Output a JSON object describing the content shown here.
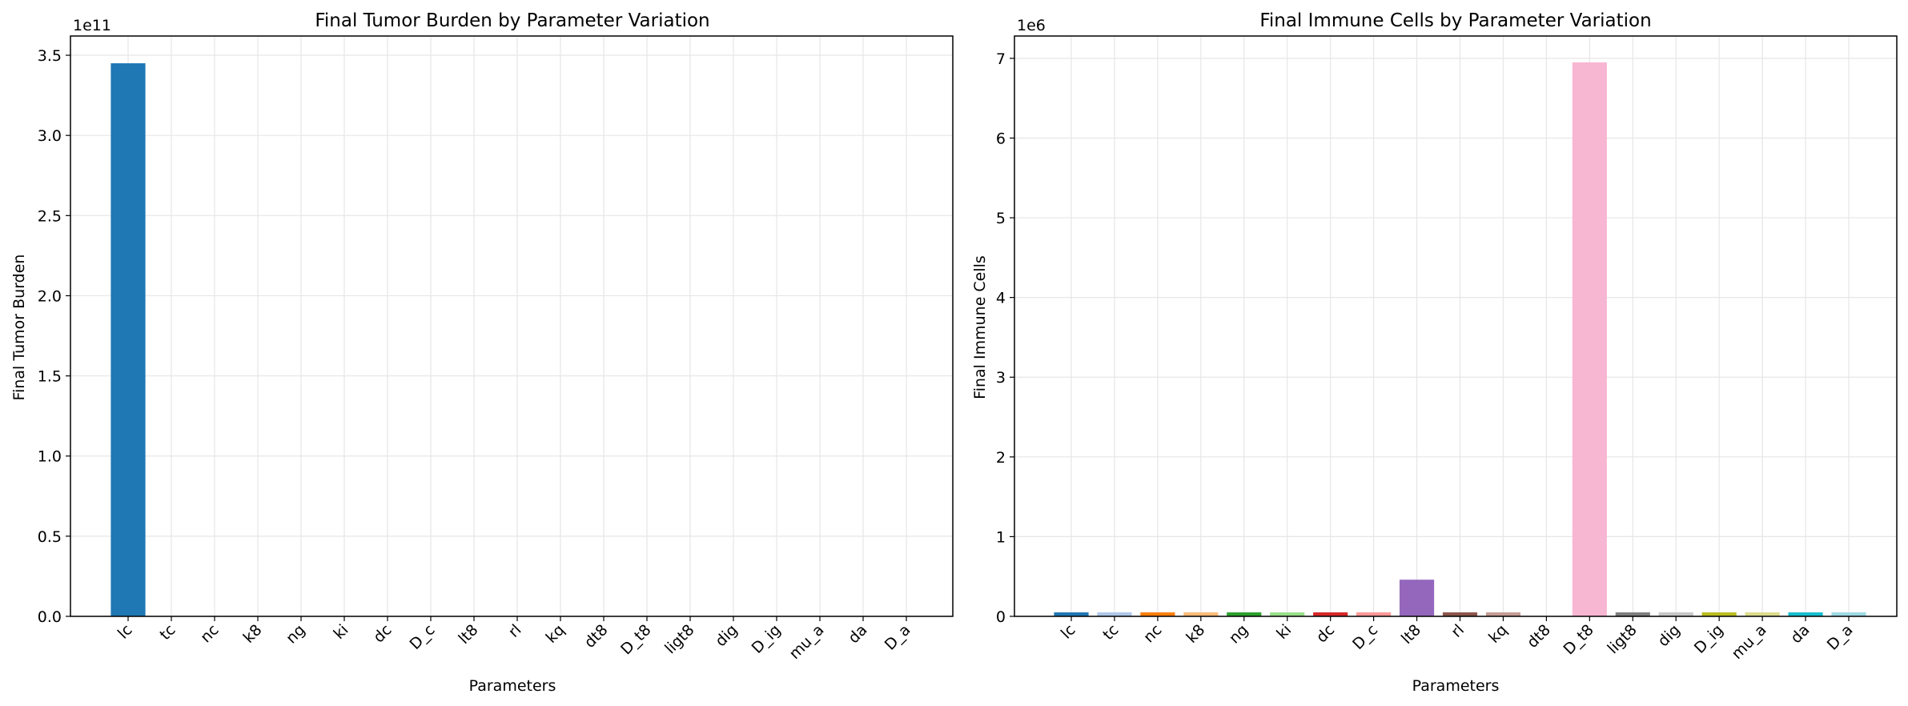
{
  "chart_data": [
    {
      "type": "bar",
      "title": "Final Tumor Burden by Parameter Variation",
      "xlabel": "Parameters",
      "ylabel": "Final Tumor Burden",
      "offset_label": "1e11",
      "ylim": [
        0,
        3.62
      ],
      "yticks": [
        0.0,
        0.5,
        1.0,
        1.5,
        2.0,
        2.5,
        3.0,
        3.5
      ],
      "ytick_labels": [
        "0.0",
        "0.5",
        "1.0",
        "1.5",
        "2.0",
        "2.5",
        "3.0",
        "3.5"
      ],
      "grid": true,
      "categories": [
        "lc",
        "tc",
        "nc",
        "k8",
        "ng",
        "ki",
        "dc",
        "D_c",
        "lt8",
        "rl",
        "kq",
        "dt8",
        "D_t8",
        "ligt8",
        "dig",
        "D_ig",
        "mu_a",
        "da",
        "D_a"
      ],
      "values": [
        3.45,
        0,
        0,
        0,
        0,
        0,
        0,
        0,
        0,
        0,
        0,
        0,
        0,
        0,
        0,
        0,
        0,
        0,
        0
      ],
      "colors": [
        "#1f77b4"
      ]
    },
    {
      "type": "bar",
      "title": "Final Immune Cells by Parameter Variation",
      "xlabel": "Parameters",
      "ylabel": "Final Immune Cells",
      "offset_label": "1e6",
      "ylim": [
        0,
        7.28
      ],
      "yticks": [
        0,
        1,
        2,
        3,
        4,
        5,
        6,
        7
      ],
      "ytick_labels": [
        "0",
        "1",
        "2",
        "3",
        "4",
        "5",
        "6",
        "7"
      ],
      "grid": true,
      "categories": [
        "lc",
        "tc",
        "nc",
        "k8",
        "ng",
        "ki",
        "dc",
        "D_c",
        "lt8",
        "rl",
        "kq",
        "dt8",
        "D_t8",
        "ligt8",
        "dig",
        "D_ig",
        "mu_a",
        "da",
        "D_a"
      ],
      "values": [
        0.05,
        0.05,
        0.05,
        0.05,
        0.05,
        0.05,
        0.05,
        0.05,
        0.46,
        0.05,
        0.05,
        0.0,
        6.95,
        0.05,
        0.05,
        0.05,
        0.05,
        0.05,
        0.05
      ],
      "colors": [
        "#1f77b4",
        "#aec7e8",
        "#ff7f0e",
        "#ffbb78",
        "#2ca02c",
        "#98df8a",
        "#d62728",
        "#ff9896",
        "#9467bd",
        "#8c564b",
        "#c49c94",
        "#e377c2",
        "#f7b6d2",
        "#7f7f7f",
        "#c7c7c7",
        "#bcbd22",
        "#dbdb8d",
        "#17becf",
        "#9edae5"
      ]
    }
  ]
}
